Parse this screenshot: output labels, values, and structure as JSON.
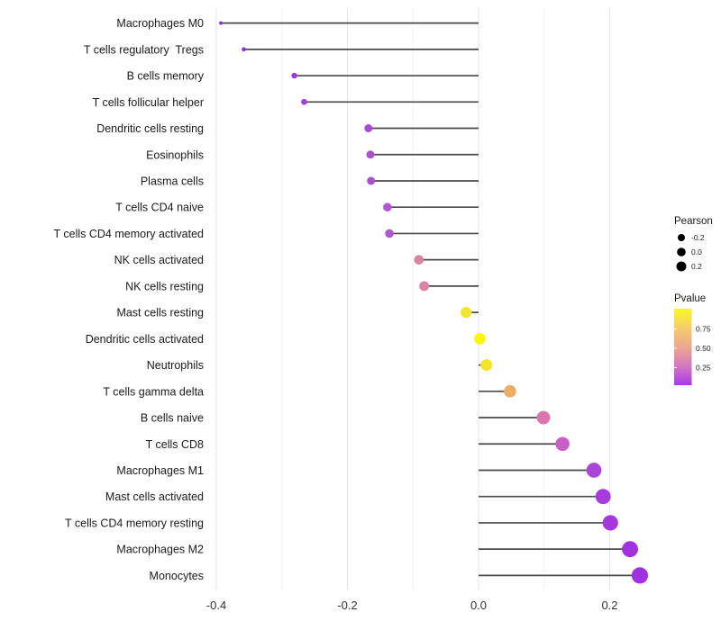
{
  "figure": {
    "background": "#ffffff",
    "grid_major_color": "#e4e4e4",
    "grid_minor_color": "#f2f2f2",
    "stem_color": "#4a4a4a",
    "label_color": "#1a1a1a",
    "tick_label_color": "#333333"
  },
  "chart_data": {
    "type": "lollipop",
    "orientation": "horizontal",
    "title": "",
    "xlabel": "",
    "ylabel": "",
    "x_axis": {
      "range": [
        -0.45,
        0.285
      ],
      "major_ticks": [
        -0.4,
        -0.2,
        0.0,
        0.2
      ],
      "tick_labels": [
        "-0.4",
        "-0.2",
        "0.0",
        "0.2"
      ],
      "minor_ticks": [
        -0.3,
        -0.1,
        0.1
      ],
      "baseline": 0.0
    },
    "points": [
      {
        "label": "Macrophages M0",
        "pearson": -0.393,
        "color": "#8C2BD2"
      },
      {
        "label": "T cells regulatory  Tregs",
        "pearson": -0.358,
        "color": "#9130D2"
      },
      {
        "label": "B cells memory",
        "pearson": -0.281,
        "color": "#9C3AD3"
      },
      {
        "label": "T cells follicular helper",
        "pearson": -0.266,
        "color": "#A041D4"
      },
      {
        "label": "Dendritic cells resting",
        "pearson": -0.168,
        "color": "#A74CD2"
      },
      {
        "label": "Eosinophils",
        "pearson": -0.165,
        "color": "#AB50D1"
      },
      {
        "label": "Plasma cells",
        "pearson": -0.164,
        "color": "#AB51D0"
      },
      {
        "label": "T cells CD4 naive",
        "pearson": -0.139,
        "color": "#B056D1"
      },
      {
        "label": "T cells CD4 memory activated",
        "pearson": -0.136,
        "color": "#B159CF"
      },
      {
        "label": "NK cells activated",
        "pearson": -0.091,
        "color": "#D8839F"
      },
      {
        "label": "NK cells resting",
        "pearson": -0.083,
        "color": "#DA83A5"
      },
      {
        "label": "Mast cells resting",
        "pearson": -0.019,
        "color": "#F2E434"
      },
      {
        "label": "Dendritic cells activated",
        "pearson": 0.002,
        "color": "#FAF60D"
      },
      {
        "label": "Neutrophils",
        "pearson": 0.012,
        "color": "#F3E52C"
      },
      {
        "label": "T cells gamma delta",
        "pearson": 0.048,
        "color": "#ECAE63"
      },
      {
        "label": "B cells naive",
        "pearson": 0.099,
        "color": "#DB76B0"
      },
      {
        "label": "T cells CD8",
        "pearson": 0.128,
        "color": "#C75FC7"
      },
      {
        "label": "Macrophages M1",
        "pearson": 0.176,
        "color": "#AB44D9"
      },
      {
        "label": "Mast cells activated",
        "pearson": 0.19,
        "color": "#A63CDB"
      },
      {
        "label": "T cells CD4 memory resting",
        "pearson": 0.201,
        "color": "#A538DD"
      },
      {
        "label": "Macrophages M2",
        "pearson": 0.231,
        "color": "#A133DF"
      },
      {
        "label": "Monocytes",
        "pearson": 0.246,
        "color": "#A030E0"
      }
    ],
    "legend": {
      "size": {
        "title": "Pearson",
        "dot_color": "#000000",
        "entries": [
          {
            "label": "-0.2",
            "r": 4.0
          },
          {
            "label": "0.0",
            "r": 4.8
          },
          {
            "label": "0.2",
            "r": 5.5
          }
        ]
      },
      "color": {
        "title": "Pvalue",
        "tick_labels": [
          "0.75",
          "0.50",
          "0.25"
        ],
        "gradient_top_to_bottom": [
          "#FBF823",
          "#F6CC69",
          "#ECA78F",
          "#D678C0",
          "#A838EC"
        ]
      }
    }
  }
}
